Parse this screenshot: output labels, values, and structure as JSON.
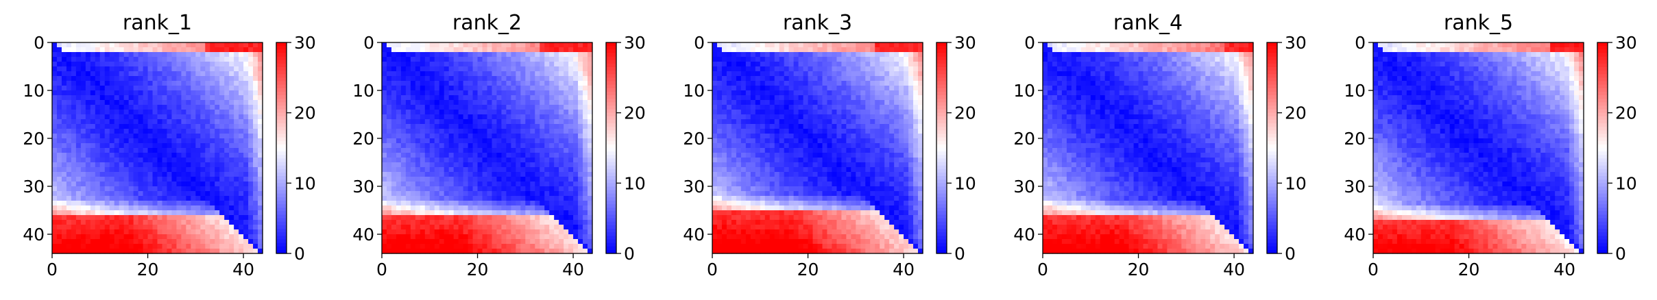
{
  "chart_data": [
    {
      "type": "heatmap",
      "title": "rank_1",
      "size": 44,
      "xticks": [
        0,
        20,
        40
      ],
      "yticks": [
        0,
        10,
        20,
        30,
        40
      ],
      "vmin": 0,
      "vmax": 30,
      "cbar_ticks": [
        0,
        10,
        20,
        30
      ],
      "colormap": "bwr",
      "lower_left_red_boundary_row": 36,
      "upper_right_red_cols": [
        32,
        44
      ]
    },
    {
      "type": "heatmap",
      "title": "rank_2",
      "size": 44,
      "xticks": [
        0,
        20,
        40
      ],
      "yticks": [
        0,
        10,
        20,
        30,
        40
      ],
      "vmin": 0,
      "vmax": 30,
      "cbar_ticks": [
        0,
        10,
        20,
        30
      ],
      "colormap": "bwr",
      "lower_left_red_boundary_row": 36,
      "upper_right_red_cols": [
        33,
        44
      ]
    },
    {
      "type": "heatmap",
      "title": "rank_3",
      "size": 44,
      "xticks": [
        0,
        20,
        40
      ],
      "yticks": [
        0,
        10,
        20,
        30,
        40
      ],
      "vmin": 0,
      "vmax": 30,
      "cbar_ticks": [
        0,
        10,
        20,
        30
      ],
      "colormap": "bwr",
      "lower_left_red_boundary_row": 35,
      "upper_right_red_cols": [
        34,
        44
      ]
    },
    {
      "type": "heatmap",
      "title": "rank_4",
      "size": 44,
      "xticks": [
        0,
        20,
        40
      ],
      "yticks": [
        0,
        10,
        20,
        30,
        40
      ],
      "vmin": 0,
      "vmax": 30,
      "cbar_ticks": [
        0,
        10,
        20,
        30
      ],
      "colormap": "bwr",
      "lower_left_red_boundary_row": 36,
      "upper_right_red_cols": [
        38,
        44
      ]
    },
    {
      "type": "heatmap",
      "title": "rank_5",
      "size": 44,
      "xticks": [
        0,
        20,
        40
      ],
      "yticks": [
        0,
        10,
        20,
        30,
        40
      ],
      "vmin": 0,
      "vmax": 30,
      "cbar_ticks": [
        0,
        10,
        20,
        30
      ],
      "colormap": "bwr",
      "lower_left_red_boundary_row": 37,
      "upper_right_red_cols": [
        37,
        44
      ]
    }
  ]
}
